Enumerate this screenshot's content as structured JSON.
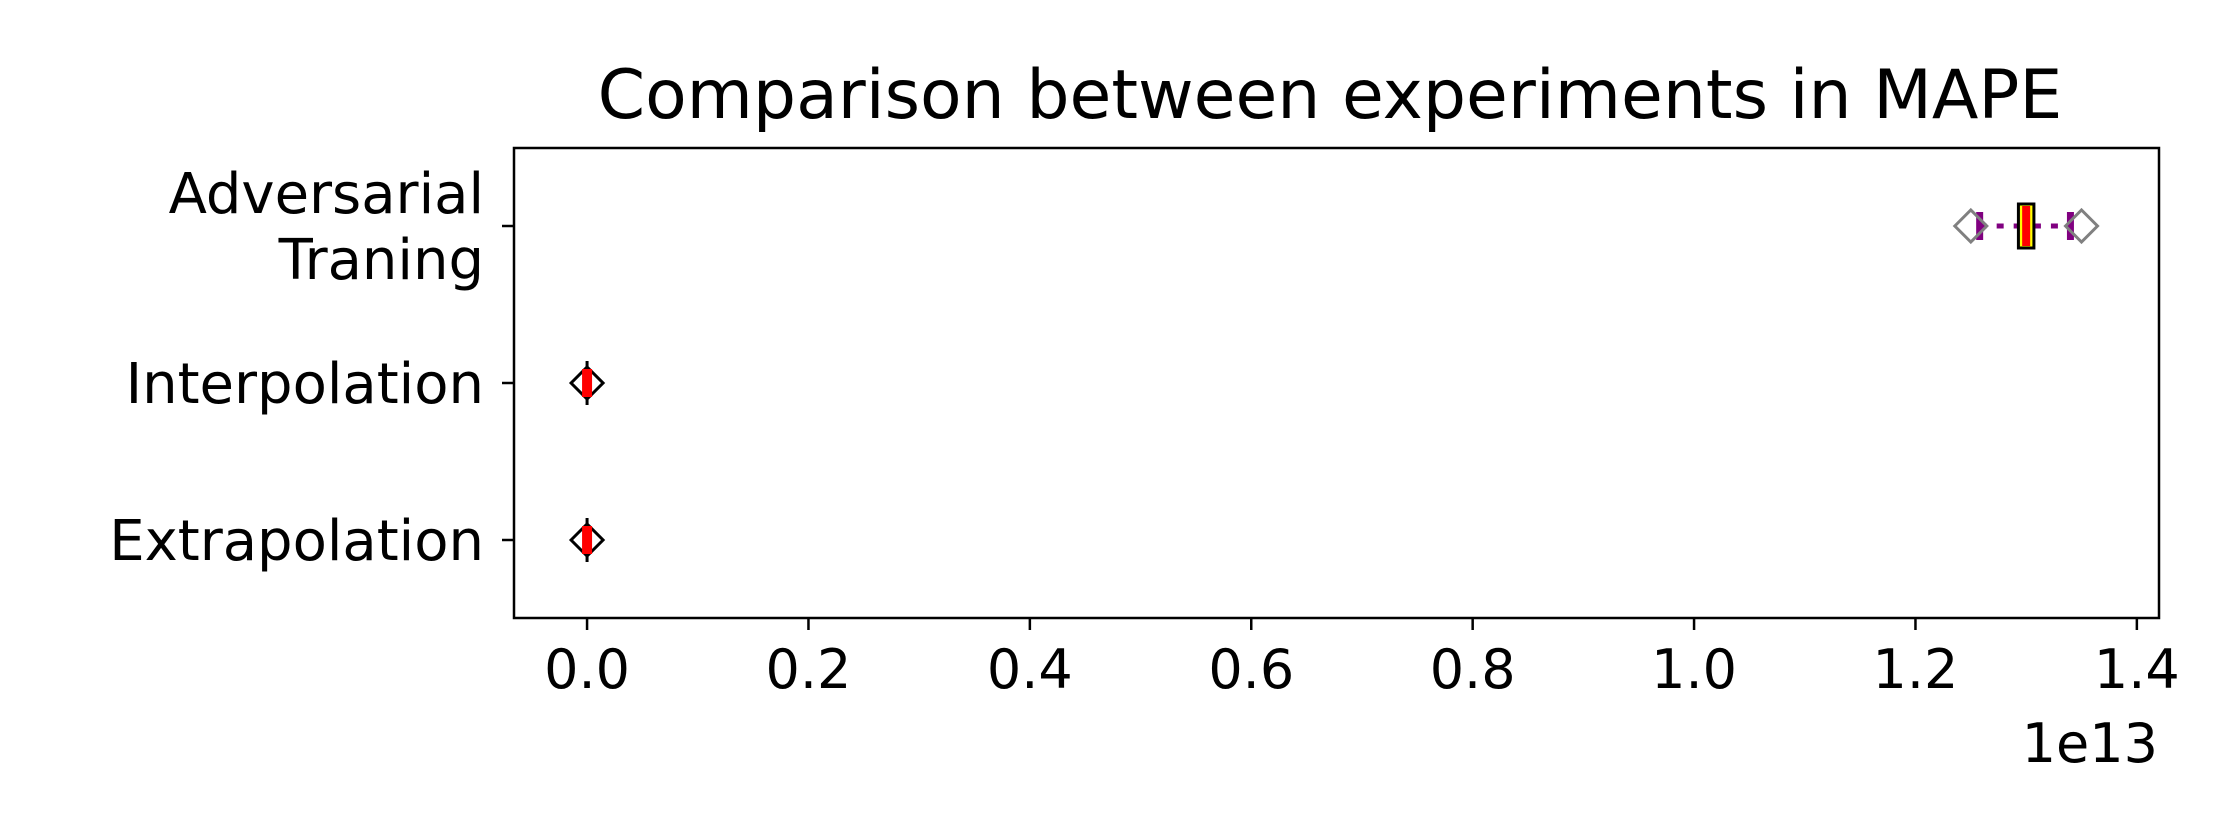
{
  "chart_data": {
    "type": "boxplot",
    "orientation": "horizontal",
    "title": "Comparison between experiments in MAPE",
    "xlabel": "",
    "ylabel": "",
    "x_scale_label": "1e13",
    "xlim": [
      -0.066,
      1.42
    ],
    "xticks": [
      0.0,
      0.2,
      0.4,
      0.6,
      0.8,
      1.0,
      1.2,
      1.4
    ],
    "xtick_labels": [
      "0.0",
      "0.2",
      "0.4",
      "0.6",
      "0.8",
      "1.0",
      "1.2",
      "1.4"
    ],
    "categories": [
      "Adversarial\nTraning",
      "Interpolation",
      "Extrapolation"
    ],
    "grid": false,
    "boxes": [
      {
        "category": "Adversarial\nTraning",
        "whisker_low": 1.258,
        "q1": 1.293,
        "median": 1.3,
        "q3": 1.307,
        "whisker_high": 1.34,
        "fliers": [
          1.25,
          1.35
        ]
      },
      {
        "category": "Interpolation",
        "whisker_low": 0.0,
        "q1": 0.0,
        "median": 0.0,
        "q3": 0.0,
        "whisker_high": 0.0,
        "fliers": [
          0.0
        ]
      },
      {
        "category": "Extrapolation",
        "whisker_low": 0.0,
        "q1": 0.0,
        "median": 0.0,
        "q3": 0.0,
        "whisker_high": 0.0,
        "fliers": [
          0.0
        ]
      }
    ],
    "colors": {
      "box_fill": "#ffff00",
      "box_edge": "#000000",
      "median": "#ff0000",
      "whisker": "#800080",
      "cap": "#800080",
      "flier_edge": "#808080",
      "flier_edge_small": "#000000",
      "axes": "#000000"
    }
  }
}
